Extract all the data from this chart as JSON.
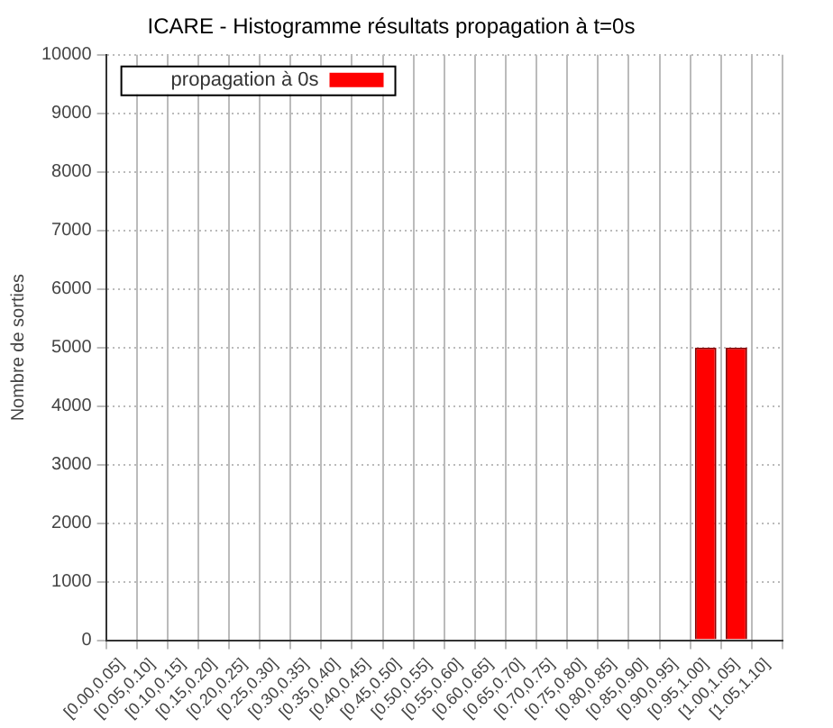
{
  "chart_data": {
    "type": "bar",
    "title": "ICARE - Histogramme résultats propagation à t=0s",
    "ylabel": "Nombre de sorties",
    "categories": [
      "[0.00,0.05]",
      "[0.05,0.10]",
      "[0.10,0.15]",
      "[0.15,0.20]",
      "[0.20,0.25]",
      "[0.25,0.30]",
      "[0.30,0.35]",
      "[0.35,0.40]",
      "[0.40,0.45]",
      "[0.45,0.50]",
      "[0.50,0.55]",
      "[0.55,0.60]",
      "[0.60,0.65]",
      "[0.65,0.70]",
      "[0.70,0.75]",
      "[0.75,0.80]",
      "[0.80,0.85]",
      "[0.85,0.90]",
      "[0.90,0.95]",
      "[0.95,1.00]",
      "[1.00,1.05]",
      "[1.05,1.10]"
    ],
    "series": [
      {
        "name": "propagation à 0s",
        "color": "#ff0000",
        "values": [
          0,
          0,
          0,
          0,
          0,
          0,
          0,
          0,
          0,
          0,
          0,
          0,
          0,
          0,
          0,
          0,
          0,
          0,
          0,
          5000,
          5000,
          0
        ]
      }
    ],
    "ylim": [
      0,
      10000
    ],
    "yticks": [
      0,
      1000,
      2000,
      3000,
      4000,
      5000,
      6000,
      7000,
      8000,
      9000,
      10000
    ],
    "grid": true,
    "legend": "top left"
  }
}
